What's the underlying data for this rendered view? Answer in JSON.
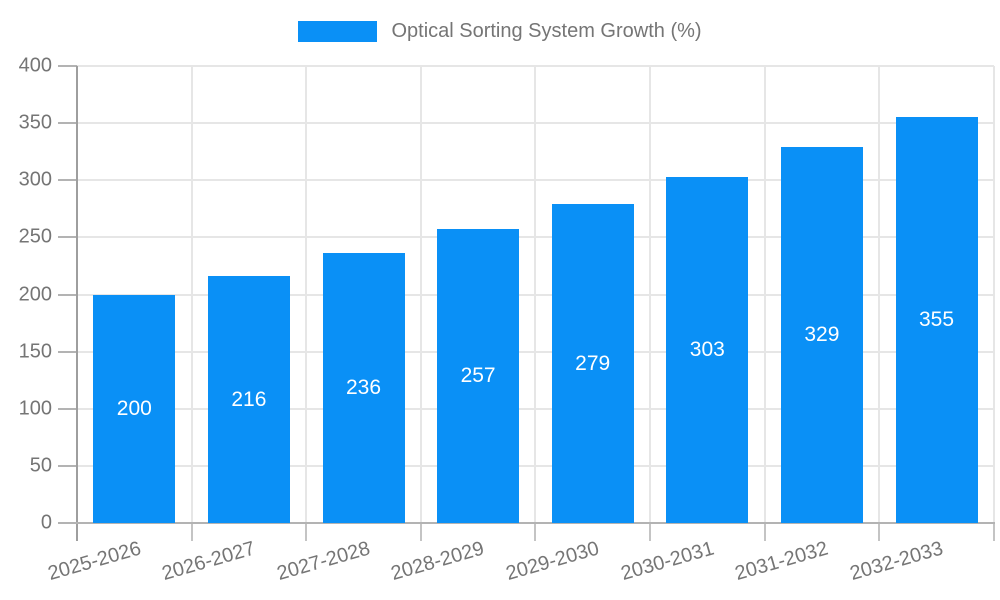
{
  "chart_data": {
    "type": "bar",
    "title": "Optical Sorting System Growth (%)",
    "categories": [
      "2025-2026",
      "2026-2027",
      "2027-2028",
      "2028-2029",
      "2029-2030",
      "2030-2031",
      "2031-2032",
      "2032-2033"
    ],
    "values": [
      200,
      216,
      236,
      257,
      279,
      303,
      329,
      355
    ],
    "series": [
      {
        "name": "Optical Sorting System Growth (%)",
        "values": [
          200,
          216,
          236,
          257,
          279,
          303,
          329,
          355
        ]
      }
    ],
    "series_color": "#0a90f6",
    "value_label_color": "#ffffff",
    "axis_text_color": "#757575",
    "xlabel": "",
    "ylabel": "",
    "ylim": [
      0,
      400
    ],
    "yticks": [
      0,
      50,
      100,
      150,
      200,
      250,
      300,
      350,
      400
    ],
    "grid": true,
    "legend_position": "top",
    "value_labels": "inside-center",
    "x_tick_rotation_deg": -16
  }
}
